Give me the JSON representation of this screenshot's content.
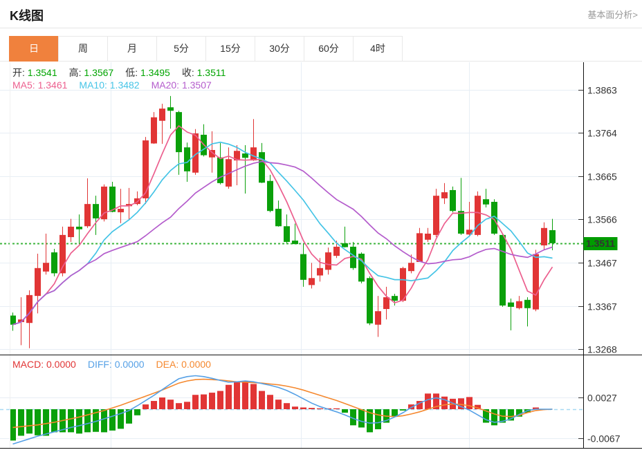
{
  "header": {
    "title": "K线图",
    "link": "基本面分析>"
  },
  "tabs": {
    "items": [
      "日",
      "周",
      "月",
      "5分",
      "15分",
      "30分",
      "60分",
      "4时"
    ],
    "active_index": 0
  },
  "legend": {
    "ohlc": [
      {
        "label": "开:",
        "value": "1.3541"
      },
      {
        "label": "高:",
        "value": "1.3567"
      },
      {
        "label": "低:",
        "value": "1.3495"
      },
      {
        "label": "收:",
        "value": "1.3511"
      }
    ],
    "ohlc_value_color": "#00a400",
    "ma": [
      {
        "label": "MA5:",
        "value": "1.3461",
        "color": "#ec5f8e"
      },
      {
        "label": "MA10:",
        "value": "1.3482",
        "color": "#45c4e6"
      },
      {
        "label": "MA20:",
        "value": "1.3507",
        "color": "#b45ccc"
      }
    ]
  },
  "macd_legend": [
    {
      "label": "MACD:",
      "value": "0.0000",
      "color": "#e13535"
    },
    {
      "label": "DIFF:",
      "value": "0.0000",
      "color": "#55a0e6"
    },
    {
      "label": "DEA:",
      "value": "0.0000",
      "color": "#f5882e"
    }
  ],
  "price_axis": {
    "labels": [
      "1.3863",
      "1.3764",
      "1.3665",
      "1.3566",
      "1.3467",
      "1.3367",
      "1.3268"
    ],
    "current": "1.3511"
  },
  "macd_axis": {
    "labels": [
      "0.0027",
      "-0.0067"
    ]
  },
  "colors": {
    "up": "#e13535",
    "down": "#0aa00a",
    "ma5": "#ec5f8e",
    "ma10": "#45c4e6",
    "ma20": "#b45ccc",
    "diff": "#55a0e6",
    "dea": "#f5882e",
    "grid": "#e7eef5",
    "zero_dash": "#a6d9f2",
    "dotted_price": "#3cb43c",
    "price_tag_bg": "#009c00",
    "axis_line": "#111111",
    "tab_active": "#f0813d"
  },
  "chart_data": {
    "type": "candlestick+macd",
    "title": "K线图",
    "price_gridlines": [
      1.3863,
      1.3764,
      1.3665,
      1.3566,
      1.3467,
      1.3367,
      1.3268
    ],
    "macd_gridlines": [
      0.0027,
      -0.0067
    ],
    "current_price": 1.3511,
    "ma_periods": [
      5,
      10,
      20
    ],
    "candles_ohlc": [
      [
        1.3345,
        1.3352,
        1.331,
        1.3324
      ],
      [
        1.333,
        1.3387,
        1.3277,
        1.3336
      ],
      [
        1.3328,
        1.3403,
        1.327,
        1.3392
      ],
      [
        1.339,
        1.3487,
        1.335,
        1.3454
      ],
      [
        1.3446,
        1.3533,
        1.3439,
        1.3466
      ],
      [
        1.349,
        1.3498,
        1.3435,
        1.3442
      ],
      [
        1.3442,
        1.3549,
        1.3435,
        1.353
      ],
      [
        1.3525,
        1.3567,
        1.3514,
        1.3549
      ],
      [
        1.3549,
        1.3577,
        1.3509,
        1.3543
      ],
      [
        1.355,
        1.366,
        1.3546,
        1.3601
      ],
      [
        1.3601,
        1.362,
        1.353,
        1.3568
      ],
      [
        1.3566,
        1.3646,
        1.3561,
        1.3641
      ],
      [
        1.3641,
        1.3652,
        1.3582,
        1.3583
      ],
      [
        1.3582,
        1.3636,
        1.3557,
        1.359
      ],
      [
        1.3596,
        1.3638,
        1.3565,
        1.3601
      ],
      [
        1.3601,
        1.363,
        1.3598,
        1.3614
      ],
      [
        1.3614,
        1.3755,
        1.3601,
        1.3747
      ],
      [
        1.374,
        1.3812,
        1.3739,
        1.38
      ],
      [
        1.3792,
        1.3831,
        1.3739,
        1.382
      ],
      [
        1.3823,
        1.3849,
        1.3774,
        1.3815
      ],
      [
        1.3812,
        1.3815,
        1.3668,
        1.372
      ],
      [
        1.3731,
        1.3742,
        1.3652,
        1.3676
      ],
      [
        1.3673,
        1.3773,
        1.3668,
        1.3763
      ],
      [
        1.376,
        1.3784,
        1.371,
        1.3713
      ],
      [
        1.3708,
        1.3768,
        1.3673,
        1.3725
      ],
      [
        1.3708,
        1.3741,
        1.3646,
        1.3649
      ],
      [
        1.3641,
        1.3731,
        1.3636,
        1.3704
      ],
      [
        1.3701,
        1.3736,
        1.3644,
        1.3723
      ],
      [
        1.3717,
        1.3736,
        1.3625,
        1.3707
      ],
      [
        1.3701,
        1.3796,
        1.37,
        1.3731
      ],
      [
        1.372,
        1.3741,
        1.3649,
        1.365
      ],
      [
        1.3654,
        1.3668,
        1.3582,
        1.3585
      ],
      [
        1.359,
        1.3609,
        1.3549,
        1.355
      ],
      [
        1.355,
        1.3577,
        1.3511,
        1.3514
      ],
      [
        1.3517,
        1.3556,
        1.3509,
        1.3509
      ],
      [
        1.3486,
        1.3509,
        1.3411,
        1.3427
      ],
      [
        1.3415,
        1.3466,
        1.3407,
        1.3431
      ],
      [
        1.3437,
        1.3477,
        1.3423,
        1.3454
      ],
      [
        1.345,
        1.3501,
        1.3439,
        1.349
      ],
      [
        1.3482,
        1.3517,
        1.3477,
        1.3503
      ],
      [
        1.3511,
        1.3549,
        1.3501,
        1.3502
      ],
      [
        1.3503,
        1.3514,
        1.345,
        1.3454
      ],
      [
        1.3487,
        1.349,
        1.3419,
        1.3423
      ],
      [
        1.3431,
        1.3435,
        1.3323,
        1.3327
      ],
      [
        1.3324,
        1.339,
        1.3296,
        1.3355
      ],
      [
        1.336,
        1.3411,
        1.3336,
        1.3387
      ],
      [
        1.339,
        1.3395,
        1.3368,
        1.3379
      ],
      [
        1.3379,
        1.3457,
        1.3376,
        1.3454
      ],
      [
        1.3447,
        1.3485,
        1.3442,
        1.3466
      ],
      [
        1.3468,
        1.3546,
        1.3468,
        1.3534
      ],
      [
        1.3519,
        1.3546,
        1.3514,
        1.3533
      ],
      [
        1.353,
        1.3636,
        1.3525,
        1.362
      ],
      [
        1.3614,
        1.3649,
        1.3601,
        1.3628
      ],
      [
        1.3633,
        1.3641,
        1.3582,
        1.3585
      ],
      [
        1.3585,
        1.3661,
        1.353,
        1.3533
      ],
      [
        1.3531,
        1.3606,
        1.3526,
        1.3542
      ],
      [
        1.353,
        1.363,
        1.3527,
        1.362
      ],
      [
        1.3612,
        1.3636,
        1.3593,
        1.36
      ],
      [
        1.3606,
        1.3612,
        1.353,
        1.3533
      ],
      [
        1.353,
        1.3533,
        1.3365,
        1.3368
      ],
      [
        1.3375,
        1.3384,
        1.3311,
        1.3365
      ],
      [
        1.3362,
        1.339,
        1.3359,
        1.3378
      ],
      [
        1.3381,
        1.3387,
        1.332,
        1.3362
      ],
      [
        1.3359,
        1.3496,
        1.3355,
        1.3486
      ],
      [
        1.3506,
        1.3559,
        1.3495,
        1.3546
      ],
      [
        1.3541,
        1.3567,
        1.3495,
        1.3511
      ]
    ],
    "macd_hist": [
      -0.0072,
      -0.0061,
      -0.0056,
      -0.006,
      -0.0061,
      -0.0053,
      -0.0053,
      -0.0053,
      -0.0056,
      -0.0053,
      -0.0052,
      -0.0053,
      -0.0049,
      -0.0045,
      -0.0033,
      -0.0014,
      0.0011,
      0.0019,
      0.0027,
      0.0022,
      0.0014,
      0.0017,
      0.0033,
      0.0034,
      0.0038,
      0.0042,
      0.0056,
      0.0064,
      0.0064,
      0.0058,
      0.0042,
      0.0033,
      0.0022,
      0.0014,
      0.0006,
      0.0004,
      0.0003,
      0.0002,
      0.0002,
      0.0002,
      -0.0008,
      -0.0037,
      -0.0042,
      -0.0053,
      -0.0046,
      -0.0031,
      -0.0017,
      -0.0003,
      0.0011,
      0.0019,
      0.0036,
      0.0036,
      0.0029,
      0.0024,
      0.0025,
      0.0028,
      0.001,
      -0.0031,
      -0.0037,
      -0.0031,
      -0.0026,
      -0.0017,
      -0.0008,
      0.0004,
      0.0,
      0.0
    ],
    "diff": [
      -0.008,
      -0.0074,
      -0.0068,
      -0.0062,
      -0.0057,
      -0.0052,
      -0.0047,
      -0.0042,
      -0.0038,
      -0.0033,
      -0.0028,
      -0.0022,
      -0.0016,
      -0.001,
      -0.0003,
      0.0008,
      0.002,
      0.0032,
      0.0045,
      0.0058,
      0.007,
      0.0075,
      0.0077,
      0.0075,
      0.0071,
      0.0066,
      0.0062,
      0.0063,
      0.0065,
      0.0063,
      0.0059,
      0.0055,
      0.005,
      0.0043,
      0.0034,
      0.0024,
      0.0014,
      0.0006,
      0.0,
      -0.0006,
      -0.0013,
      -0.0021,
      -0.0028,
      -0.0032,
      -0.0031,
      -0.0026,
      -0.0018,
      -0.0008,
      0.0004,
      0.0014,
      0.0022,
      0.0026,
      0.0022,
      0.0014,
      0.0006,
      -0.0002,
      -0.0013,
      -0.0024,
      -0.003,
      -0.0028,
      -0.0022,
      -0.0012,
      -0.0003,
      0.0,
      0.0,
      0.0
    ],
    "dea": [
      -0.0042,
      -0.004,
      -0.0038,
      -0.0036,
      -0.0033,
      -0.003,
      -0.0026,
      -0.0022,
      -0.0018,
      -0.0013,
      -0.0008,
      -0.0003,
      0.0003,
      0.0009,
      0.0016,
      0.0023,
      0.003,
      0.0037,
      0.0044,
      0.0052,
      0.006,
      0.0065,
      0.0068,
      0.0069,
      0.0068,
      0.0067,
      0.0065,
      0.0063,
      0.0062,
      0.0061,
      0.006,
      0.0058,
      0.0056,
      0.0053,
      0.0049,
      0.0044,
      0.0038,
      0.0032,
      0.0026,
      0.002,
      0.0013,
      0.0006,
      -0.0001,
      -0.0008,
      -0.0013,
      -0.0016,
      -0.0017,
      -0.0015,
      -0.0011,
      -0.0006,
      0.0,
      0.0006,
      0.001,
      0.0012,
      0.0011,
      0.0008,
      0.0003,
      -0.0004,
      -0.0011,
      -0.0016,
      -0.0017,
      -0.0014,
      -0.0008,
      -0.0003,
      -0.0001,
      0.0
    ]
  }
}
